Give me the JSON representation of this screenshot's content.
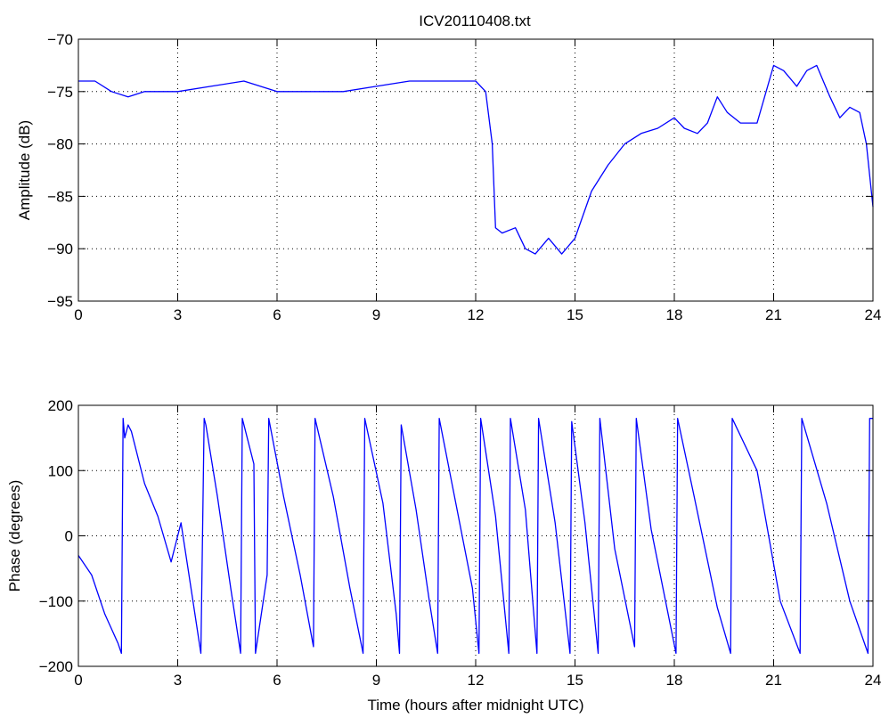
{
  "figure": {
    "title": "ICV20110408.txt"
  },
  "colors": {
    "line": "#0000ff",
    "axes": "#000000",
    "grid": "#000000",
    "background": "#ffffff"
  },
  "chart_data": [
    {
      "type": "line",
      "title": "ICV20110408.txt",
      "xlabel": "",
      "ylabel": "Amplitude (dB)",
      "xlim": [
        0,
        24
      ],
      "ylim": [
        -95,
        -70
      ],
      "xticks": [
        0,
        3,
        6,
        9,
        12,
        15,
        18,
        21,
        24
      ],
      "yticks": [
        -95,
        -90,
        -85,
        -80,
        -75,
        -70
      ],
      "grid": true,
      "series": [
        {
          "x": [
            0,
            0.5,
            1,
            1.5,
            2,
            3,
            4,
            5,
            6,
            7,
            8,
            9,
            10,
            11,
            12,
            12.3,
            12.5,
            12.6,
            12.8,
            13.2,
            13.5,
            13.8,
            14.2,
            14.6,
            15,
            15.5,
            16,
            16.5,
            17,
            17.5,
            18,
            18.3,
            18.7,
            19,
            19.3,
            19.6,
            20,
            20.5,
            21,
            21.3,
            21.7,
            22,
            22.3,
            22.7,
            23,
            23.3,
            23.6,
            23.8,
            24
          ],
          "values": [
            -74,
            -74,
            -75,
            -75.5,
            -75,
            -75,
            -74.5,
            -74,
            -75,
            -75,
            -75,
            -74.5,
            -74,
            -74,
            -74,
            -75,
            -80,
            -88,
            -88.5,
            -88,
            -90,
            -90.5,
            -89,
            -90.5,
            -89,
            -84.5,
            -82,
            -80,
            -79,
            -78.5,
            -77.5,
            -78.5,
            -79,
            -78,
            -75.5,
            -77,
            -78,
            -78,
            -72.5,
            -73,
            -74.5,
            -73,
            -72.5,
            -75.5,
            -77.5,
            -76.5,
            -77,
            -80,
            -86
          ]
        }
      ]
    },
    {
      "type": "line",
      "title": "",
      "xlabel": "Time (hours after midnight UTC)",
      "ylabel": "Phase (degrees)",
      "xlim": [
        0,
        24
      ],
      "ylim": [
        -200,
        200
      ],
      "xticks": [
        0,
        3,
        6,
        9,
        12,
        15,
        18,
        21,
        24
      ],
      "yticks": [
        -200,
        -100,
        0,
        100,
        200
      ],
      "grid": true,
      "series": [
        {
          "x": [
            0,
            0.4,
            0.8,
            1.2,
            1.3,
            1.35,
            1.4,
            1.5,
            1.6,
            2.0,
            2.4,
            2.8,
            3.1,
            3.4,
            3.7,
            3.8,
            3.85,
            4.2,
            4.6,
            4.9,
            4.95,
            5.3,
            5.35,
            5.7,
            5.75,
            6.2,
            6.7,
            7.1,
            7.15,
            7.7,
            8.2,
            8.6,
            8.65,
            9.2,
            9.6,
            9.7,
            9.75,
            10.2,
            10.6,
            10.85,
            10.9,
            11.4,
            11.9,
            12.1,
            12.15,
            12.6,
            13.0,
            13.05,
            13.5,
            13.85,
            13.9,
            14.4,
            14.85,
            14.9,
            15.3,
            15.7,
            15.75,
            16.2,
            16.8,
            16.85,
            17.3,
            18.05,
            18.1,
            18.6,
            19.3,
            19.7,
            19.75,
            20.5,
            21.2,
            21.8,
            21.85,
            22.6,
            23.3,
            23.85,
            23.9,
            24
          ],
          "values": [
            -30,
            -60,
            -120,
            -165,
            -180,
            180,
            150,
            170,
            160,
            80,
            30,
            -40,
            20,
            -80,
            -180,
            180,
            170,
            60,
            -80,
            -180,
            180,
            110,
            -180,
            -60,
            180,
            60,
            -60,
            -170,
            180,
            60,
            -80,
            -180,
            180,
            50,
            -120,
            -180,
            170,
            40,
            -100,
            -180,
            180,
            50,
            -80,
            -180,
            180,
            30,
            -180,
            180,
            40,
            -180,
            180,
            20,
            -180,
            175,
            20,
            -180,
            180,
            -20,
            -170,
            180,
            10,
            -180,
            180,
            60,
            -110,
            -180,
            180,
            100,
            -100,
            -180,
            180,
            50,
            -100,
            -180,
            180,
            180
          ]
        }
      ]
    }
  ]
}
